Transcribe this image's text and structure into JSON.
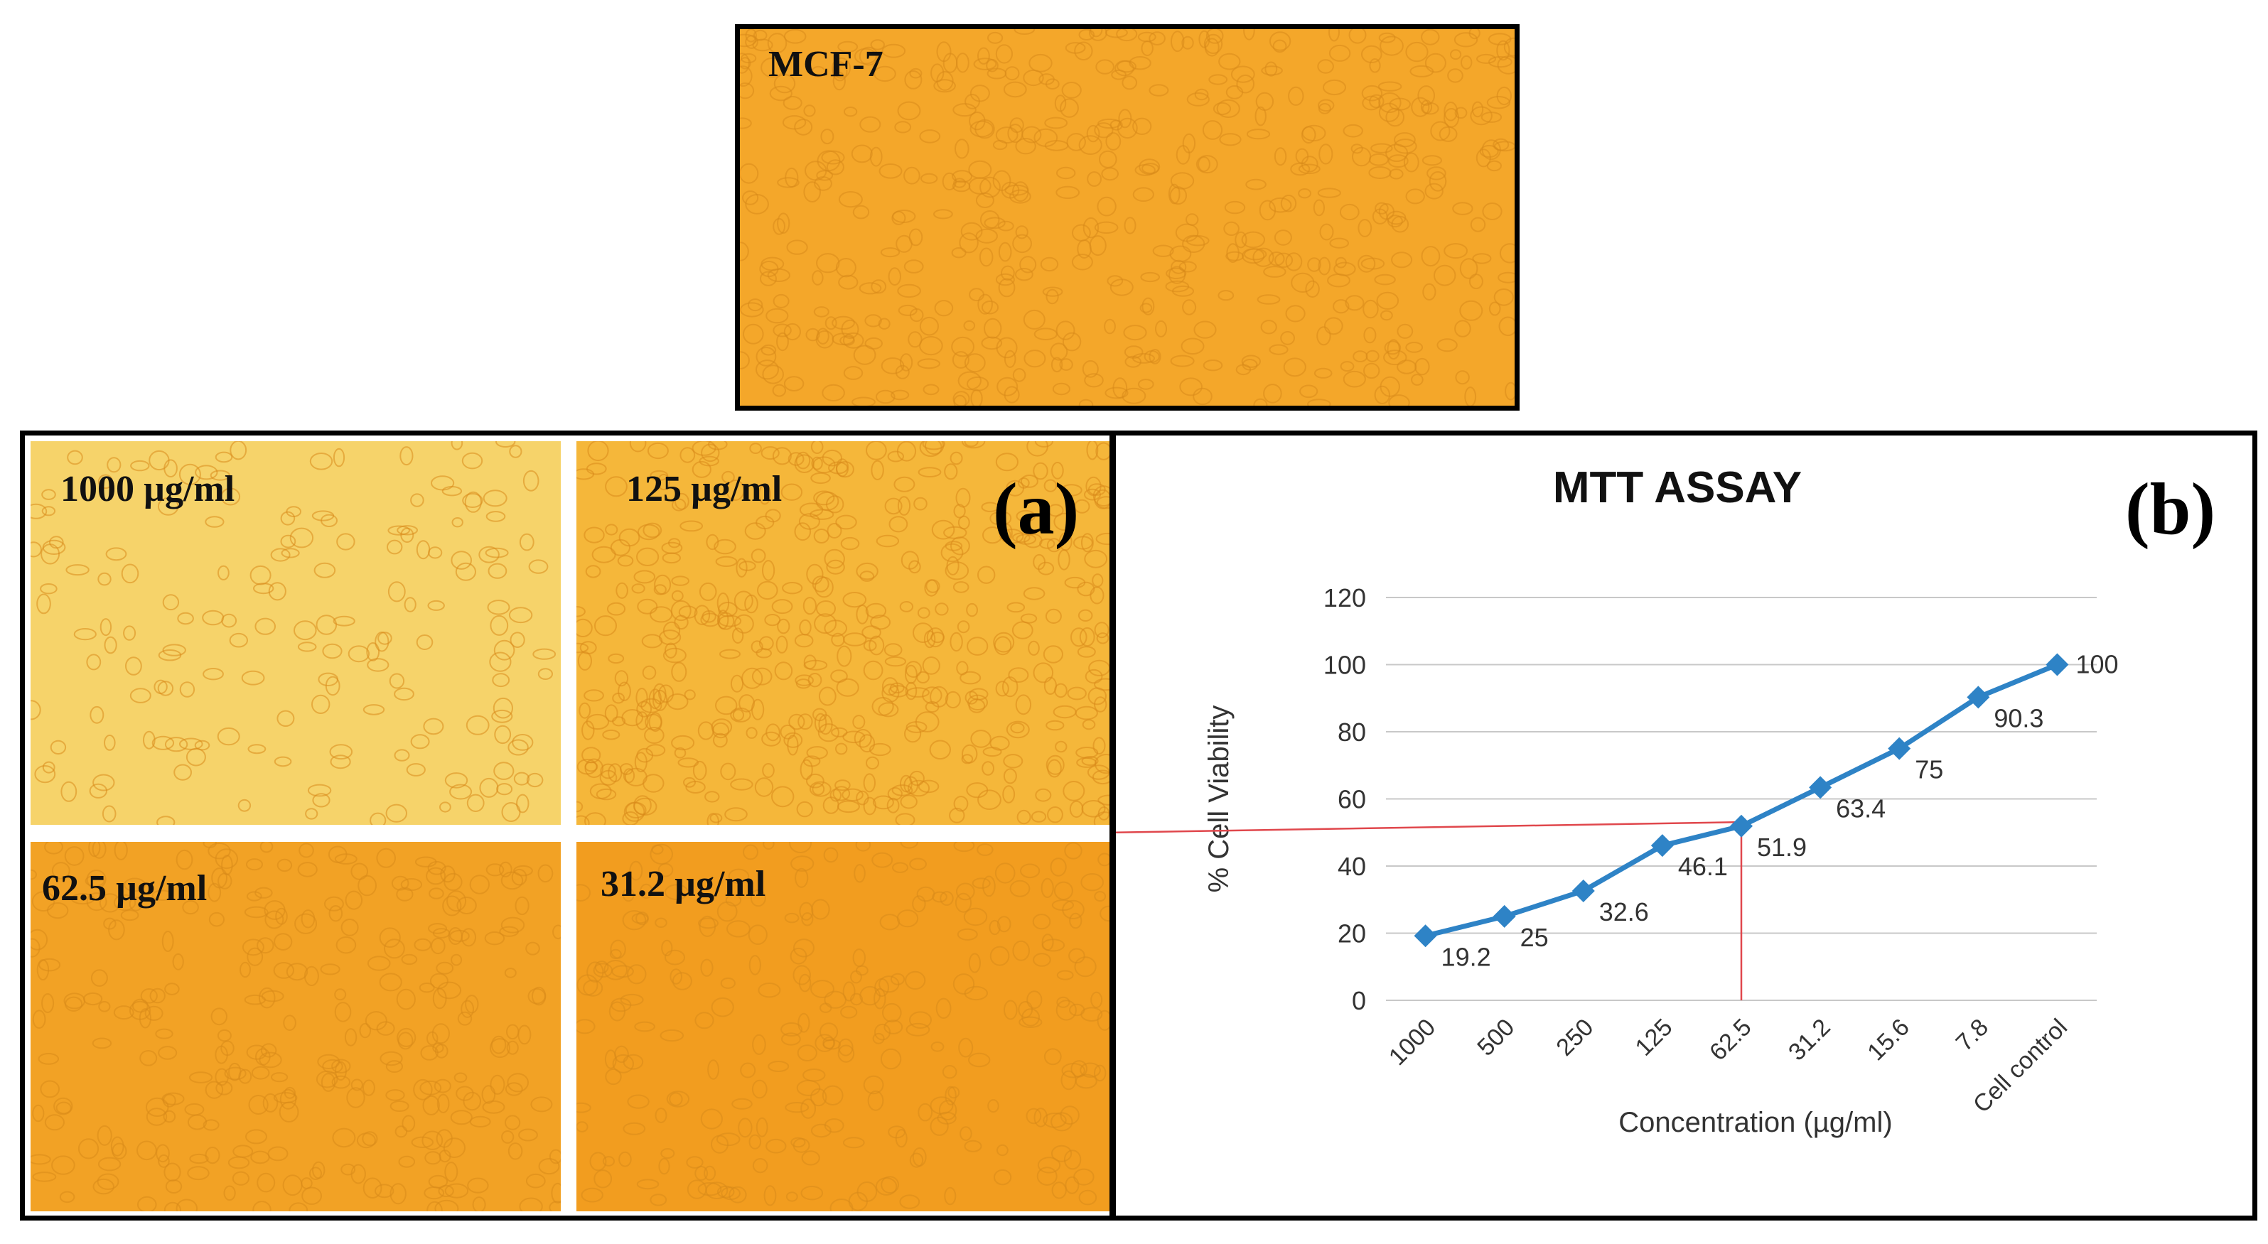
{
  "reference_panel": {
    "label": "MCF-7"
  },
  "panel_a": {
    "letter": "(a)",
    "images": [
      {
        "label": "1000 µg/ml",
        "tone": "#f6d36a"
      },
      {
        "label": "125 µg/ml",
        "tone": "#f5b73a"
      },
      {
        "label": "62.5 µg/ml",
        "tone": "#f2a225"
      },
      {
        "label": "31.2 µg/ml",
        "tone": "#f29d1f"
      }
    ]
  },
  "panel_b": {
    "letter": "(b)"
  },
  "colors": {
    "series": "#2e83c6",
    "ic50_line": "#e0474c",
    "grid": "#c8c8c8",
    "micro_base": "#f4a72a",
    "cell": "#d98a1a"
  },
  "chart_data": {
    "type": "line",
    "title": "MTT ASSAY",
    "xlabel": "Concentration   (µg/ml)",
    "ylabel": "% Cell Viability",
    "categories": [
      "1000",
      "500",
      "250",
      "125",
      "62.5",
      "31.2",
      "15.6",
      "7.8",
      "Cell control"
    ],
    "series": [
      {
        "name": "% Cell Viability",
        "values": [
          19.2,
          25,
          32.6,
          46.1,
          51.9,
          63.4,
          75,
          90.3,
          100
        ]
      }
    ],
    "data_labels": [
      "19.2",
      "25",
      "32.6",
      "46.1",
      "51.9",
      "63.4",
      "75",
      "90.3",
      "100"
    ],
    "y_ticks": [
      0,
      20,
      40,
      60,
      80,
      100,
      120
    ],
    "ylim": [
      0,
      120
    ],
    "grid": true,
    "ic50_marker": {
      "y": 50,
      "x_category": "62.5"
    }
  }
}
